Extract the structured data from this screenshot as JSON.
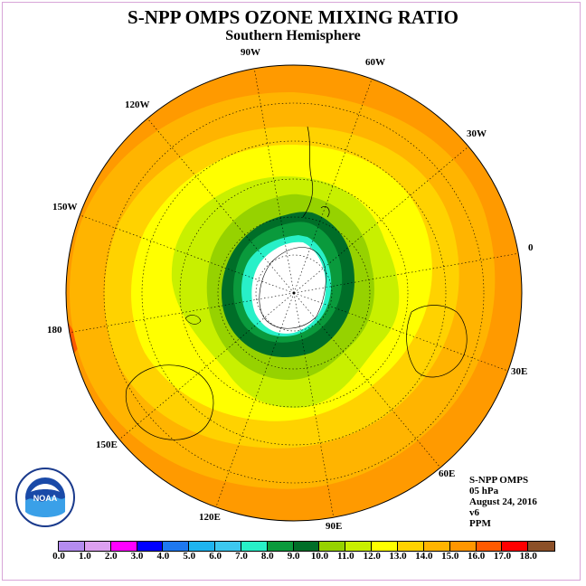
{
  "title": "S-NPP OMPS OZONE MIXING RATIO",
  "subtitle": "Southern Hemisphere",
  "longitude_labels": [
    "90W",
    "60W",
    "30W",
    "0",
    "30E",
    "60E",
    "90E",
    "120E",
    "150E",
    "180",
    "150W",
    "120W"
  ],
  "info": {
    "instrument": "S-NPP OMPS",
    "level": "05 hPa",
    "date": "August 24, 2016",
    "version": "v6",
    "units": "PPM"
  },
  "logo": {
    "icon": "noaa-logo-icon",
    "text": "NOAA"
  },
  "colorbar": {
    "labels": [
      "0.0",
      "1.0",
      "2.0",
      "3.0",
      "4.0",
      "5.0",
      "6.0",
      "7.0",
      "8.0",
      "9.0",
      "10.0",
      "11.0",
      "12.0",
      "13.0",
      "14.0",
      "15.0",
      "16.0",
      "17.0",
      "18.0"
    ],
    "colors": [
      "#b48cf0",
      "#dca0f0",
      "#ff00ff",
      "#0000ff",
      "#1e78f0",
      "#1eb4f0",
      "#3cc8f0",
      "#28f0c8",
      "#0a9a3c",
      "#006e28",
      "#96d200",
      "#c8f000",
      "#ffff00",
      "#ffd200",
      "#ffb400",
      "#ff9600",
      "#ff5a00",
      "#ff0000",
      "#8c5028"
    ]
  }
}
